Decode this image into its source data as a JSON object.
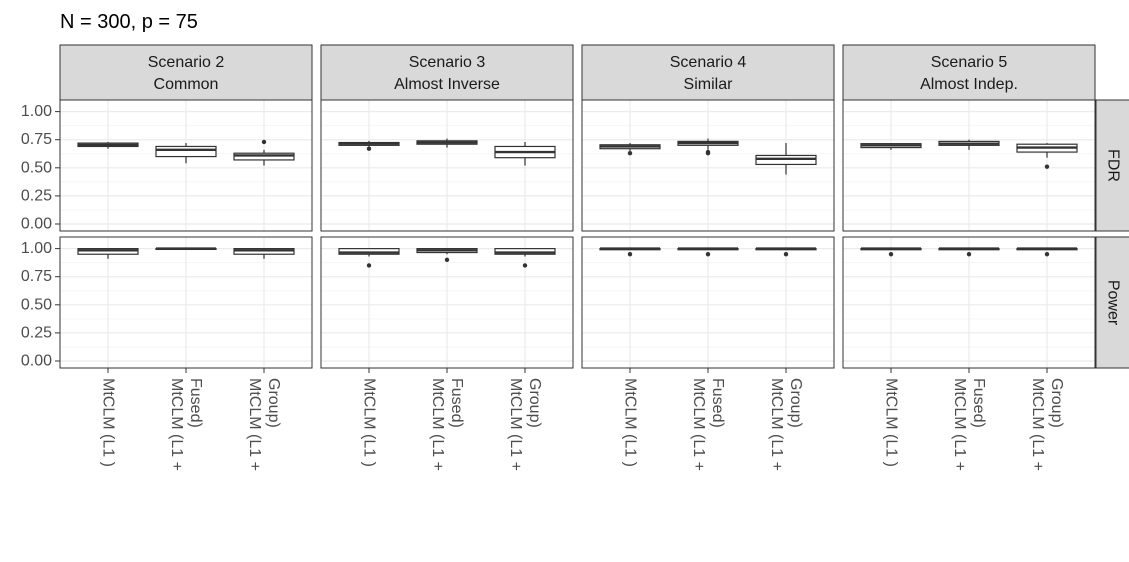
{
  "title": "N = 300, p = 75",
  "chart_data": {
    "type": "boxplot",
    "facet_columns": [
      {
        "line1": "Scenario 2",
        "line2": "Common"
      },
      {
        "line1": "Scenario 3",
        "line2": "Almost Inverse"
      },
      {
        "line1": "Scenario 4",
        "line2": "Similar"
      },
      {
        "line1": "Scenario 5",
        "line2": "Almost Indep."
      }
    ],
    "facet_rows": [
      "FDR",
      "Power"
    ],
    "categories": [
      "MtCLM (L1 )",
      "MtCLM (L1 + Fused)",
      "MtCLM (L1 + Group)"
    ],
    "category_lines": [
      [
        "MtCLM (L1 )"
      ],
      [
        "MtCLM (L1 +",
        "Fused)"
      ],
      [
        "MtCLM (L1 +",
        "Group)"
      ]
    ],
    "y_ticks": [
      "0.00",
      "0.25",
      "0.50",
      "0.75",
      "1.00"
    ],
    "ylim": [
      0,
      1.05
    ],
    "panels": {
      "FDR": [
        [
          {
            "q1": 0.69,
            "median": 0.705,
            "q3": 0.72,
            "wlo": 0.67,
            "whi": 0.73,
            "outliers": []
          },
          {
            "q1": 0.6,
            "median": 0.66,
            "q3": 0.69,
            "wlo": 0.54,
            "whi": 0.72,
            "outliers": []
          },
          {
            "q1": 0.57,
            "median": 0.61,
            "q3": 0.63,
            "wlo": 0.52,
            "whi": 0.66,
            "outliers": [
              0.73
            ]
          }
        ],
        [
          {
            "q1": 0.7,
            "median": 0.715,
            "q3": 0.725,
            "wlo": 0.69,
            "whi": 0.74,
            "outliers": [
              0.67
            ]
          },
          {
            "q1": 0.71,
            "median": 0.725,
            "q3": 0.74,
            "wlo": 0.68,
            "whi": 0.76,
            "outliers": []
          },
          {
            "q1": 0.59,
            "median": 0.64,
            "q3": 0.69,
            "wlo": 0.52,
            "whi": 0.73,
            "outliers": []
          }
        ],
        [
          {
            "q1": 0.67,
            "median": 0.69,
            "q3": 0.705,
            "wlo": 0.65,
            "whi": 0.72,
            "outliers": [
              0.63
            ]
          },
          {
            "q1": 0.7,
            "median": 0.72,
            "q3": 0.735,
            "wlo": 0.66,
            "whi": 0.76,
            "outliers": [
              0.64,
              0.63
            ]
          },
          {
            "q1": 0.53,
            "median": 0.58,
            "q3": 0.61,
            "wlo": 0.44,
            "whi": 0.72,
            "outliers": []
          }
        ],
        [
          {
            "q1": 0.68,
            "median": 0.7,
            "q3": 0.715,
            "wlo": 0.66,
            "whi": 0.72,
            "outliers": []
          },
          {
            "q1": 0.7,
            "median": 0.715,
            "q3": 0.735,
            "wlo": 0.66,
            "whi": 0.75,
            "outliers": []
          },
          {
            "q1": 0.64,
            "median": 0.68,
            "q3": 0.71,
            "wlo": 0.59,
            "whi": 0.72,
            "outliers": [
              0.51
            ]
          }
        ]
      ],
      "Power": [
        [
          {
            "q1": 0.95,
            "median": 0.985,
            "q3": 1.0,
            "wlo": 0.91,
            "whi": 1.0,
            "outliers": []
          },
          {
            "q1": 0.995,
            "median": 1.0,
            "q3": 1.0,
            "wlo": 0.995,
            "whi": 1.0,
            "outliers": []
          },
          {
            "q1": 0.95,
            "median": 0.985,
            "q3": 1.0,
            "wlo": 0.91,
            "whi": 1.0,
            "outliers": []
          }
        ],
        [
          {
            "q1": 0.95,
            "median": 0.965,
            "q3": 1.0,
            "wlo": 0.93,
            "whi": 1.0,
            "outliers": [
              0.85
            ]
          },
          {
            "q1": 0.965,
            "median": 0.985,
            "q3": 1.0,
            "wlo": 0.95,
            "whi": 1.0,
            "outliers": [
              0.9
            ]
          },
          {
            "q1": 0.95,
            "median": 0.965,
            "q3": 1.0,
            "wlo": 0.93,
            "whi": 1.0,
            "outliers": [
              0.85
            ]
          }
        ],
        [
          {
            "q1": 0.99,
            "median": 1.0,
            "q3": 1.0,
            "wlo": 0.99,
            "whi": 1.0,
            "outliers": [
              0.95
            ]
          },
          {
            "q1": 0.99,
            "median": 1.0,
            "q3": 1.0,
            "wlo": 0.99,
            "whi": 1.0,
            "outliers": [
              0.95
            ]
          },
          {
            "q1": 0.99,
            "median": 1.0,
            "q3": 1.0,
            "wlo": 0.99,
            "whi": 1.0,
            "outliers": [
              0.95
            ]
          }
        ],
        [
          {
            "q1": 0.99,
            "median": 1.0,
            "q3": 1.0,
            "wlo": 0.99,
            "whi": 1.0,
            "outliers": [
              0.95
            ]
          },
          {
            "q1": 0.99,
            "median": 1.0,
            "q3": 1.0,
            "wlo": 0.99,
            "whi": 1.0,
            "outliers": [
              0.95
            ]
          },
          {
            "q1": 0.99,
            "median": 1.0,
            "q3": 1.0,
            "wlo": 0.99,
            "whi": 1.0,
            "outliers": [
              0.95
            ]
          }
        ]
      ]
    },
    "colors": {
      "strip_fill": "#d9d9d9",
      "panel_border": "#333333",
      "grid_major": "#ebebeb",
      "grid_minor": "#f5f5f5",
      "box_line": "#333333",
      "box_fill": "#ffffff"
    }
  }
}
